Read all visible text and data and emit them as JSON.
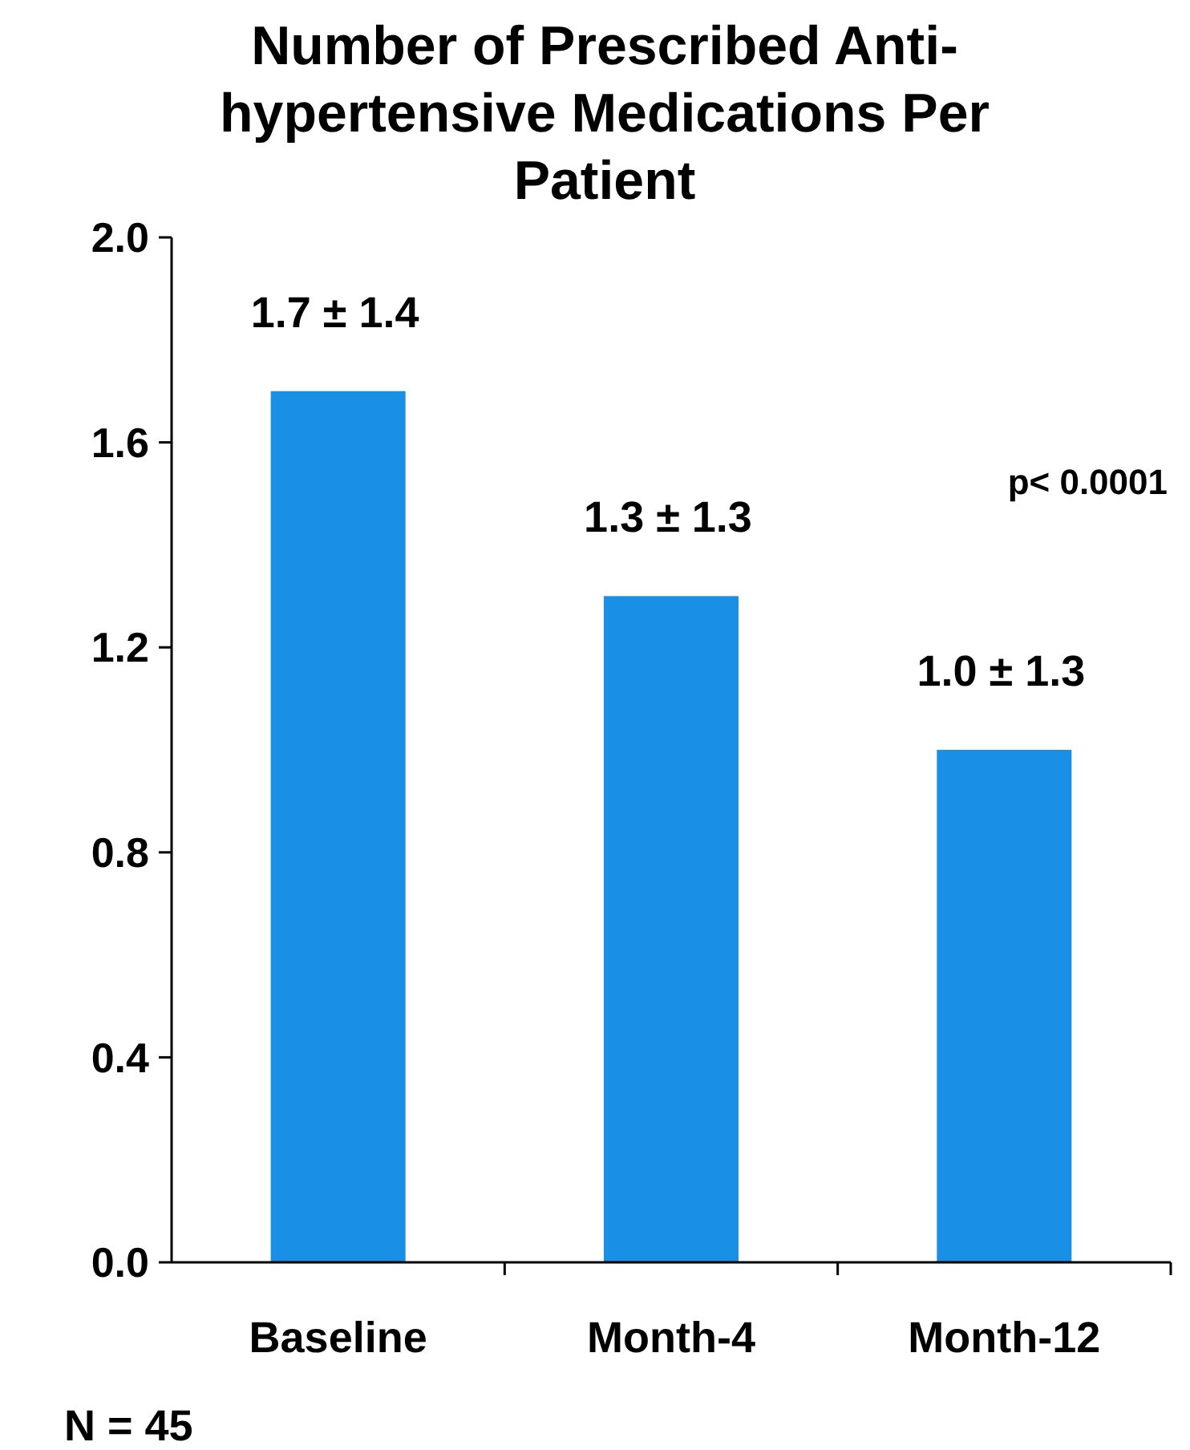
{
  "chart_data": {
    "type": "bar",
    "title": "Number of Prescribed Anti-hypertensive Medications Per Patient",
    "categories": [
      "Baseline",
      "Month-4",
      "Month-12"
    ],
    "values": [
      1.7,
      1.3,
      1.0
    ],
    "value_labels": [
      "1.7 ± 1.4",
      "1.3 ± 1.3",
      "1.0 ± 1.3"
    ],
    "color": "#1a8fe6",
    "ylim": [
      0,
      2
    ],
    "yticks": [
      {
        "value": 0,
        "label": "0.0"
      },
      {
        "value": 0.4,
        "label": "0.4"
      },
      {
        "value": 0.8,
        "label": "0.8"
      },
      {
        "value": 1.2,
        "label": "1.2"
      },
      {
        "value": 1.6,
        "label": "1.6"
      },
      {
        "value": 2,
        "label": "2.0"
      }
    ],
    "annotations": [
      "p< 0.0001",
      "N = 45"
    ],
    "grid": false
  }
}
